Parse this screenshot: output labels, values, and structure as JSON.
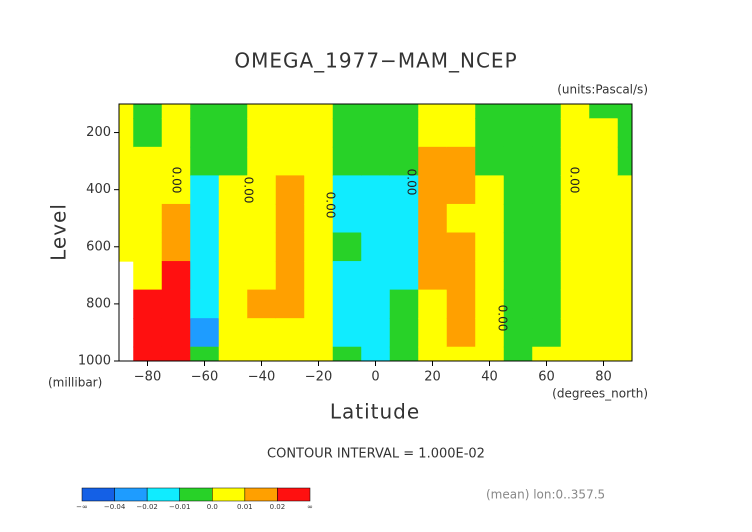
{
  "chart_data": {
    "type": "contour",
    "title": "OMEGA_1977−MAM_NCEP",
    "units": "(units:Pascal/s)",
    "y_label": "Level",
    "y_unit": "(millibar)",
    "x_label": "Latitude",
    "x_unit": "(degrees_north)",
    "contour_interval": "CONTOUR INTERVAL = 1.000E-02",
    "footnote": "(mean) lon:0..357.5",
    "contour_label": "0.00",
    "xlim": [
      -90,
      90
    ],
    "xticks": [
      {
        "value": -80,
        "label": "−80"
      },
      {
        "value": -60,
        "label": "−60"
      },
      {
        "value": -40,
        "label": "−40"
      },
      {
        "value": -20,
        "label": "−20"
      },
      0,
      20,
      40,
      60,
      80
    ],
    "ylim": [
      1000,
      100
    ],
    "yticks": [
      200,
      400,
      600,
      800,
      1000
    ],
    "x": [
      -90,
      -80,
      -70,
      -60,
      -50,
      -40,
      -30,
      -20,
      -10,
      0,
      10,
      20,
      30,
      40,
      50,
      60,
      70,
      80,
      90
    ],
    "y": [
      100,
      200,
      300,
      400,
      500,
      600,
      700,
      800,
      900,
      1000
    ],
    "z": [
      [
        0.005,
        0.005,
        0.005,
        0.005,
        0.005,
        0.005,
        null,
        null,
        null,
        null
      ],
      [
        -0.005,
        -0.005,
        0.005,
        0.005,
        0.005,
        0.005,
        0.005,
        0.03,
        0.03,
        0.03
      ],
      [
        0.005,
        0.005,
        0.005,
        0.005,
        0.015,
        0.015,
        0.03,
        0.03,
        0.03,
        0.03
      ],
      [
        -0.005,
        -0.005,
        -0.005,
        -0.015,
        -0.015,
        -0.015,
        -0.015,
        -0.015,
        -0.03,
        -0.005
      ],
      [
        -0.005,
        -0.005,
        -0.005,
        0.005,
        0.005,
        0.005,
        0.005,
        0.005,
        0.005,
        0.005
      ],
      [
        0.005,
        0.005,
        0.005,
        0.005,
        0.005,
        0.005,
        0.005,
        0.015,
        0.005,
        0.005
      ],
      [
        0.005,
        0.005,
        0.005,
        0.015,
        0.015,
        0.015,
        0.015,
        0.015,
        0.005,
        0.005
      ],
      [
        0.005,
        0.005,
        0.005,
        0.005,
        0.005,
        0.005,
        0.005,
        0.005,
        0.005,
        0.005
      ],
      [
        -0.005,
        -0.005,
        -0.005,
        -0.015,
        -0.015,
        -0.005,
        -0.015,
        -0.015,
        -0.015,
        -0.005
      ],
      [
        -0.005,
        -0.005,
        -0.005,
        -0.015,
        -0.015,
        -0.015,
        -0.015,
        -0.015,
        -0.015,
        -0.015
      ],
      [
        -0.005,
        -0.005,
        -0.005,
        -0.015,
        -0.015,
        -0.015,
        -0.015,
        -0.005,
        -0.005,
        -0.005
      ],
      [
        0.005,
        0.005,
        0.015,
        0.015,
        0.015,
        0.015,
        0.015,
        0.005,
        0.005,
        0.005
      ],
      [
        0.005,
        0.005,
        0.015,
        0.015,
        0.005,
        0.015,
        0.015,
        0.015,
        0.015,
        0.005
      ],
      [
        -0.005,
        -0.005,
        -0.005,
        0.005,
        0.005,
        0.005,
        0.005,
        0.005,
        0.005,
        0.005
      ],
      [
        -0.005,
        -0.005,
        -0.005,
        -0.005,
        -0.005,
        -0.005,
        -0.005,
        -0.005,
        -0.005,
        -0.005
      ],
      [
        -0.005,
        -0.005,
        -0.005,
        -0.005,
        -0.005,
        -0.005,
        -0.005,
        -0.005,
        -0.005,
        0.005
      ],
      [
        0.005,
        0.005,
        0.005,
        0.005,
        0.005,
        0.005,
        0.005,
        0.005,
        0.005,
        0.005
      ],
      [
        -0.005,
        0.005,
        0.005,
        0.005,
        0.005,
        0.005,
        0.005,
        0.005,
        0.005,
        0.005
      ],
      [
        -0.005,
        -0.005,
        -0.005,
        0.005,
        0.005,
        0.005,
        0.005,
        0.005,
        0.005,
        0.005
      ]
    ],
    "colorbar_ticks": [
      {
        "value": -0.04,
        "label": "−0.04"
      },
      {
        "value": -0.02,
        "label": "−0.02"
      },
      {
        "value": -0.01,
        "label": "−0.01"
      },
      {
        "value": 0,
        "label": "0.0"
      },
      {
        "value": 0.01,
        "label": "0.01"
      },
      {
        "value": 0.02,
        "label": "0.02"
      }
    ],
    "colorbar_ends": [
      "−∞",
      "∞"
    ],
    "colors": [
      "#1460e6",
      "#1e9cff",
      "#10ecff",
      "#28d228",
      "#ffff00",
      "#ffa000",
      "#ff1010"
    ]
  }
}
